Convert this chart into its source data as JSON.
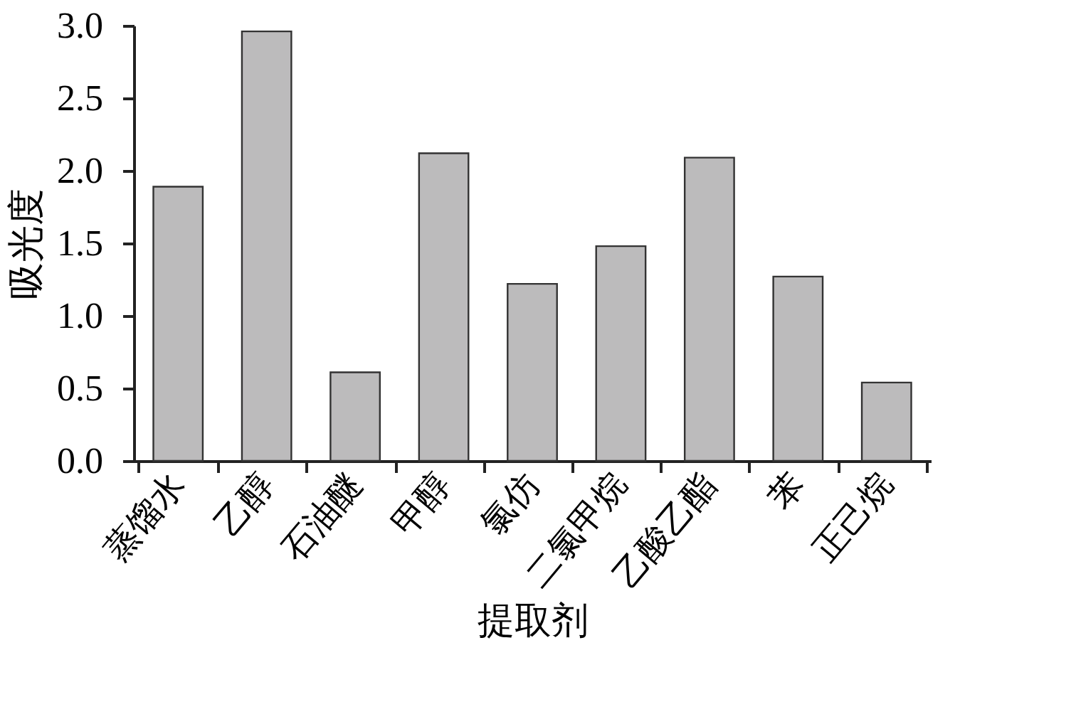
{
  "chart_data": {
    "type": "bar",
    "xlabel": "提取剂",
    "ylabel": "吸光度",
    "categories": [
      "蒸馏水",
      "乙醇",
      "石油醚",
      "甲醇",
      "氯仿",
      "二氯甲烷",
      "乙酸乙酯",
      "苯",
      "正己烷"
    ],
    "values": [
      1.89,
      2.96,
      0.61,
      2.12,
      1.22,
      1.48,
      2.09,
      1.27,
      0.54
    ],
    "color": "#bcbbbc",
    "ylim": [
      0,
      3.0
    ],
    "yticks": [
      {
        "value": 0,
        "label": "0.0"
      },
      {
        "value": 0.5,
        "label": "0.5"
      },
      {
        "value": 1.0,
        "label": "1.0"
      },
      {
        "value": 1.5,
        "label": "1.5"
      },
      {
        "value": 2.0,
        "label": "2.0"
      },
      {
        "value": 2.5,
        "label": "2.5"
      },
      {
        "value": 3.0,
        "label": "3.0"
      }
    ],
    "grid": false
  }
}
